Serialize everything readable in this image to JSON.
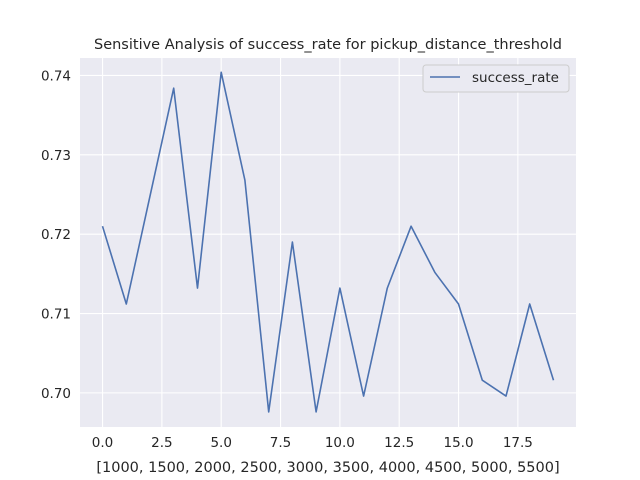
{
  "chart_data": {
    "type": "line",
    "title": "Sensitive Analysis of success_rate for pickup_distance_threshold",
    "xlabel": "[1000, 1500, 2000, 2500, 3000, 3500, 4000, 4500, 5000, 5500]",
    "ylabel": "",
    "xlim": [
      -0.95,
      19.95
    ],
    "ylim": [
      0.6957,
      0.7422
    ],
    "xticks": [
      0.0,
      2.5,
      5.0,
      7.5,
      10.0,
      12.5,
      15.0,
      17.5
    ],
    "xtick_labels": [
      "0.0",
      "2.5",
      "5.0",
      "7.5",
      "10.0",
      "12.5",
      "15.0",
      "17.5"
    ],
    "yticks": [
      0.7,
      0.71,
      0.72,
      0.73,
      0.74
    ],
    "ytick_labels": [
      "0.70",
      "0.71",
      "0.72",
      "0.73",
      "0.74"
    ],
    "grid": true,
    "legend_position": "top-right",
    "series": [
      {
        "name": "success_rate",
        "color": "#4c72b0",
        "x": [
          0,
          1,
          2,
          3,
          4,
          5,
          6,
          7,
          8,
          9,
          10,
          11,
          12,
          13,
          14,
          15,
          16,
          17,
          18,
          19
        ],
        "values": [
          0.721,
          0.7112,
          0.7248,
          0.7384,
          0.7132,
          0.7404,
          0.7268,
          0.6976,
          0.719,
          0.6976,
          0.7132,
          0.6996,
          0.7132,
          0.721,
          0.7152,
          0.7112,
          0.7016,
          0.6996,
          0.7112,
          0.7016
        ]
      }
    ]
  }
}
